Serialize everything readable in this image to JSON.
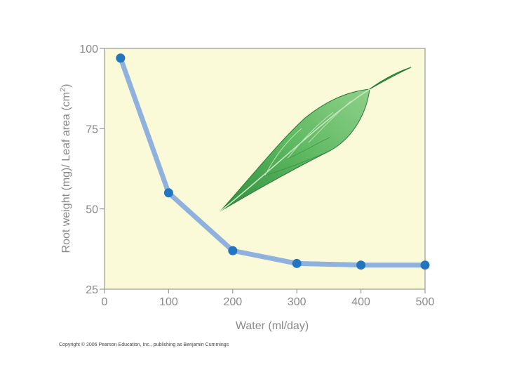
{
  "chart_data": {
    "type": "line",
    "xlabel": "Water (ml/day)",
    "ylabel": "Root weight (mg)/ Leaf area (cm",
    "ylabel_superscript": "2",
    "ylabel_close": ")",
    "x_ticks": [
      "0",
      "100",
      "200",
      "300",
      "400",
      "500"
    ],
    "y_ticks": [
      "25",
      "50",
      "75",
      "100"
    ],
    "xlim": [
      0,
      500
    ],
    "ylim": [
      25,
      100
    ],
    "grid": false,
    "series": [
      {
        "x": [
          25,
          100,
          200,
          300,
          400,
          500
        ],
        "y": [
          97,
          55,
          37,
          33,
          32.5,
          32.5
        ]
      }
    ]
  },
  "copyright": "Copyright © 2006 Pearson Education, Inc., publishing as Benjamin Cummings",
  "colors": {
    "plot_background": "#fafad8",
    "line": "#8eb1dd",
    "marker": "#2276c0",
    "axis": "#9a9a9a",
    "leaf": "#3e9e4a"
  }
}
